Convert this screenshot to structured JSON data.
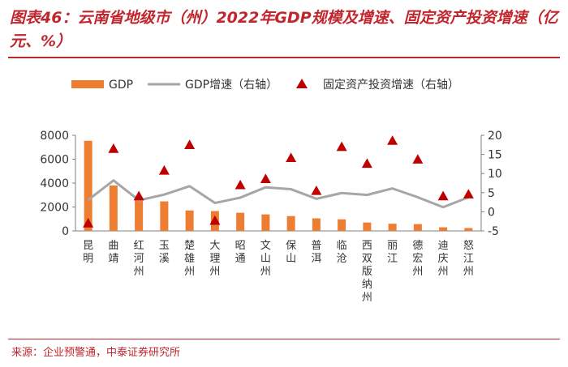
{
  "header": {
    "title": "图表46：云南省地级市（州）2022年GDP规模及增速、固定资产投资增速（亿元、%）"
  },
  "footer": {
    "source": "来源：企业预警通，中泰证券研究所"
  },
  "colors": {
    "accent": "#c0262d",
    "bar": "#ed7d31",
    "line": "#a6a6a6",
    "marker": "#c00000"
  },
  "chart_data": {
    "type": "bar",
    "categories": [
      "昆明",
      "曲靖",
      "红河州",
      "玉溪",
      "楚雄州",
      "大理州",
      "昭通",
      "文山州",
      "保山",
      "普洱",
      "临沧",
      "西双版纳州",
      "丽江",
      "德宏州",
      "迪庆州",
      "怒江州"
    ],
    "series": [
      {
        "name": "GDP",
        "type": "bar",
        "axis": "left",
        "values": [
          7540,
          3800,
          2790,
          2470,
          1710,
          1660,
          1520,
          1380,
          1240,
          1050,
          970,
          700,
          600,
          570,
          300,
          240
        ]
      },
      {
        "name": "GDP增速（右轴）",
        "type": "line",
        "axis": "right",
        "values": [
          3.1,
          8.2,
          3.0,
          4.5,
          6.7,
          2.3,
          3.7,
          6.4,
          5.9,
          3.4,
          4.9,
          4.4,
          6.1,
          3.8,
          1.2,
          3.8
        ]
      },
      {
        "name": "固定资产投资增速（右轴）",
        "type": "scatter",
        "axis": "right",
        "values": [
          -3.0,
          16.5,
          4.1,
          10.8,
          17.5,
          -2.3,
          7.0,
          8.6,
          14.1,
          5.5,
          17.0,
          12.6,
          18.6,
          13.7,
          4.1,
          4.6
        ]
      }
    ],
    "y_left": {
      "ticks": [
        0,
        2000,
        4000,
        6000,
        8000
      ],
      "labels": [
        "0",
        "2000",
        "4000",
        "6000",
        "8000"
      ],
      "ylim": [
        0,
        8000
      ]
    },
    "y_right": {
      "ticks": [
        -5,
        0,
        5,
        10,
        15,
        20
      ],
      "labels": [
        "-5",
        "0",
        "5",
        "10",
        "15",
        "20"
      ],
      "ylim": [
        -5,
        20
      ]
    },
    "legend": [
      "GDP",
      "GDP增速（右轴）",
      "固定资产投资增速（右轴）"
    ],
    "legend_position": "top",
    "grid": false
  }
}
